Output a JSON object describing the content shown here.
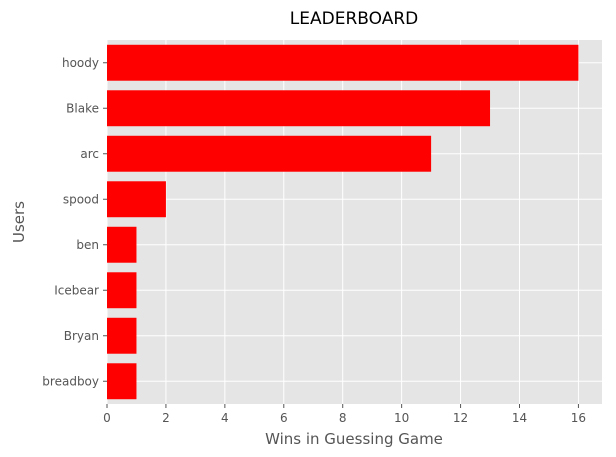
{
  "chart_data": {
    "type": "bar",
    "orientation": "horizontal",
    "title": "LEADERBOARD",
    "xlabel": "Wins in Guessing Game",
    "ylabel": "Users",
    "categories": [
      "hoody",
      "Blake",
      "arc",
      "spood",
      "ben",
      "Icebear",
      "Bryan",
      "breadboy"
    ],
    "values": [
      16,
      13,
      11,
      2,
      1,
      1,
      1,
      1
    ],
    "xlim": [
      0,
      16.8
    ],
    "xticks": [
      0,
      2,
      4,
      6,
      8,
      10,
      12,
      14,
      16
    ],
    "grid": true,
    "legend": "none",
    "colors": {
      "bar": "#ff0000",
      "background": "#e5e5e5",
      "grid": "#ffffff"
    }
  }
}
